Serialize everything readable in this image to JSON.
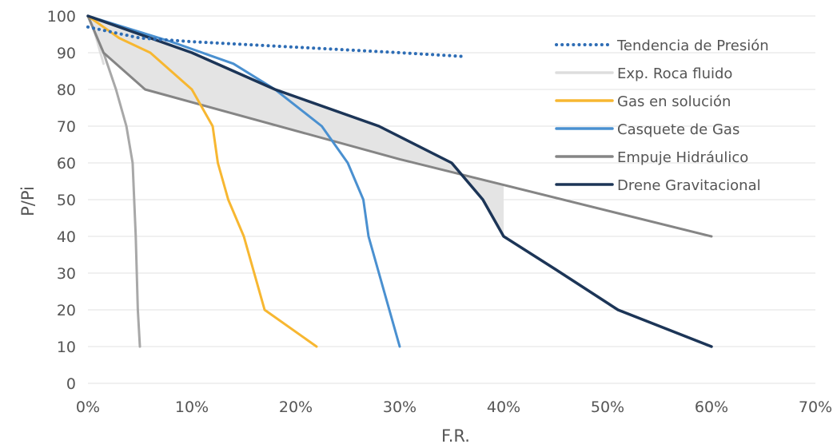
{
  "chart_data": {
    "type": "line",
    "title": "",
    "xlabel": "F.R.",
    "ylabel": "P/Pi",
    "xlim": [
      0,
      70
    ],
    "ylim": [
      0,
      100
    ],
    "x_ticks": [
      "0%",
      "10%",
      "20%",
      "30%",
      "40%",
      "50%",
      "60%",
      "70%"
    ],
    "y_ticks": [
      "0",
      "10",
      "20",
      "30",
      "40",
      "50",
      "60",
      "70",
      "80",
      "90",
      "100"
    ],
    "grid": true,
    "legend_position": "top-right",
    "shaded_region": {
      "between": [
        "Empuje Hidráulico",
        "Drene Gravitacional"
      ],
      "color": "#e4e4e4"
    },
    "series": [
      {
        "name": "Tendencia de Presión",
        "color": "#2e6db5",
        "style": "dotted",
        "points": [
          [
            0,
            97
          ],
          [
            5,
            94
          ],
          [
            10,
            93
          ],
          [
            20,
            91.5
          ],
          [
            30,
            90
          ],
          [
            36,
            89
          ]
        ]
      },
      {
        "name": "Exp. Roca fluido",
        "color": "#dddddd",
        "style": "solid",
        "points": [
          [
            0,
            100
          ],
          [
            0.5,
            97
          ],
          [
            1,
            92
          ],
          [
            1.5,
            87
          ]
        ]
      },
      {
        "name": "Gas en solución",
        "color": "#f7b731",
        "style": "solid",
        "points": [
          [
            0,
            100
          ],
          [
            3,
            94
          ],
          [
            6,
            90
          ],
          [
            10,
            80
          ],
          [
            12,
            70
          ],
          [
            12.5,
            60
          ],
          [
            13.5,
            50
          ],
          [
            15,
            40
          ],
          [
            17,
            20
          ],
          [
            22,
            10
          ]
        ]
      },
      {
        "name": "Casquete de Gas",
        "color": "#4a90d0",
        "style": "solid",
        "points": [
          [
            0,
            100
          ],
          [
            8,
            93
          ],
          [
            14,
            87
          ],
          [
            18,
            80
          ],
          [
            22.5,
            70
          ],
          [
            25,
            60
          ],
          [
            26.5,
            50
          ],
          [
            27,
            40
          ],
          [
            30,
            10
          ]
        ]
      },
      {
        "name": "Empuje Hidráulico",
        "color": "#858585",
        "style": "solid",
        "points": [
          [
            0,
            100
          ],
          [
            1.5,
            90
          ],
          [
            5.5,
            80
          ],
          [
            30,
            61
          ],
          [
            40,
            54
          ],
          [
            60,
            40
          ]
        ]
      },
      {
        "name": "Drene Gravitacional",
        "color": "#1c3557",
        "style": "solid",
        "points": [
          [
            0,
            100
          ],
          [
            10,
            90
          ],
          [
            18,
            80
          ],
          [
            28,
            70
          ],
          [
            35,
            60
          ],
          [
            36.5,
            55
          ],
          [
            38,
            50
          ],
          [
            40,
            40
          ],
          [
            45,
            31
          ],
          [
            51,
            20
          ],
          [
            60,
            10
          ]
        ]
      },
      {
        "name": "",
        "color": "#a8a8a8",
        "style": "solid",
        "points": [
          [
            0,
            100
          ],
          [
            1.5,
            90
          ],
          [
            2.7,
            80
          ],
          [
            3.7,
            70
          ],
          [
            4.3,
            60
          ],
          [
            4.6,
            40
          ],
          [
            4.8,
            20
          ],
          [
            5,
            10
          ]
        ]
      }
    ]
  }
}
